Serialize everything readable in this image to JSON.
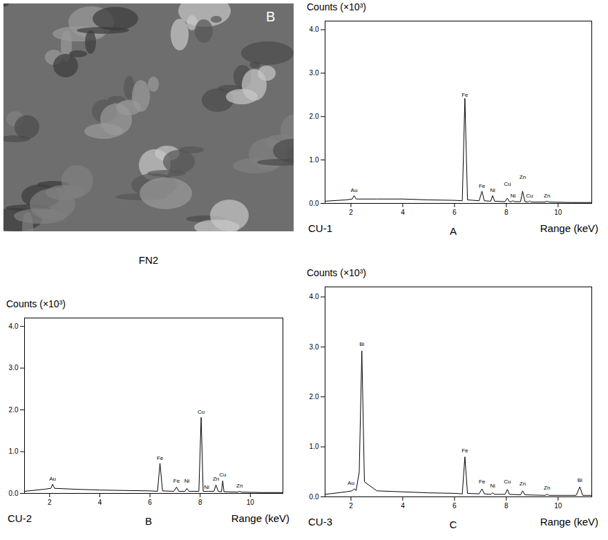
{
  "image": {
    "caption": "FN2",
    "label": "B"
  },
  "chart_data": [
    {
      "type": "line",
      "panel": "A",
      "sample": "CU-1",
      "ylabel": "Counts (×10³)",
      "xlabel": "Range (keV)",
      "color": "#000000",
      "grid": false,
      "xlim": [
        1,
        11.3
      ],
      "xticks": [
        2,
        4,
        6,
        8,
        10
      ],
      "ylim": [
        0,
        4.2
      ],
      "yticks": [
        0,
        1,
        2,
        3,
        4
      ],
      "x": [
        1.0,
        1.8,
        2.05,
        2.12,
        2.2,
        3.0,
        4.0,
        5.0,
        6.0,
        6.3,
        6.4,
        6.5,
        6.95,
        7.06,
        7.15,
        7.4,
        7.47,
        7.55,
        7.95,
        8.04,
        8.12,
        8.2,
        8.26,
        8.32,
        8.55,
        8.63,
        8.72,
        8.85,
        8.9,
        8.95,
        9.5,
        9.57,
        9.65,
        10.5,
        11.3
      ],
      "values": [
        0.05,
        0.08,
        0.1,
        0.18,
        0.1,
        0.1,
        0.1,
        0.08,
        0.07,
        0.06,
        2.42,
        0.08,
        0.06,
        0.28,
        0.06,
        0.05,
        0.18,
        0.05,
        0.04,
        0.12,
        0.04,
        0.04,
        0.06,
        0.04,
        0.04,
        0.28,
        0.04,
        0.03,
        0.06,
        0.03,
        0.03,
        0.05,
        0.03,
        0.02,
        0.02
      ],
      "annotations": [
        {
          "text": "Au",
          "x": 2.12,
          "y": 0.3
        },
        {
          "text": "Fe",
          "x": 6.4,
          "y": 2.5
        },
        {
          "text": "Fe",
          "x": 7.06,
          "y": 0.4
        },
        {
          "text": "Ni",
          "x": 7.47,
          "y": 0.3
        },
        {
          "text": "Cu",
          "x": 8.04,
          "y": 0.45
        },
        {
          "text": "Ni",
          "x": 8.26,
          "y": 0.18
        },
        {
          "text": "Zn",
          "x": 8.63,
          "y": 0.6
        },
        {
          "text": "Cu",
          "x": 8.9,
          "y": 0.18
        },
        {
          "text": "Zn",
          "x": 9.57,
          "y": 0.18
        }
      ]
    },
    {
      "type": "line",
      "panel": "B",
      "sample": "CU-2",
      "ylabel": "Counts (×10³)",
      "xlabel": "Range (keV)",
      "color": "#000000",
      "grid": false,
      "xlim": [
        1,
        11.3
      ],
      "xticks": [
        2,
        4,
        6,
        8,
        10
      ],
      "ylim": [
        0,
        4.2
      ],
      "yticks": [
        0,
        1,
        2,
        3,
        4
      ],
      "x": [
        1.0,
        1.8,
        2.05,
        2.12,
        2.2,
        3.0,
        4.0,
        5.0,
        6.0,
        6.3,
        6.4,
        6.5,
        6.95,
        7.06,
        7.15,
        7.4,
        7.47,
        7.55,
        7.95,
        8.04,
        8.12,
        8.2,
        8.26,
        8.32,
        8.55,
        8.63,
        8.72,
        8.85,
        8.9,
        8.95,
        9.5,
        9.57,
        9.65,
        10.5,
        11.3
      ],
      "values": [
        0.05,
        0.1,
        0.12,
        0.22,
        0.12,
        0.1,
        0.08,
        0.07,
        0.06,
        0.05,
        0.72,
        0.06,
        0.05,
        0.15,
        0.05,
        0.05,
        0.12,
        0.05,
        0.05,
        1.82,
        0.05,
        0.05,
        0.05,
        0.05,
        0.05,
        0.2,
        0.05,
        0.04,
        0.3,
        0.04,
        0.03,
        0.05,
        0.03,
        0.02,
        0.02
      ],
      "annotations": [
        {
          "text": "Au",
          "x": 2.12,
          "y": 0.35
        },
        {
          "text": "Fe",
          "x": 6.4,
          "y": 0.85
        },
        {
          "text": "Fe",
          "x": 7.06,
          "y": 0.3
        },
        {
          "text": "Ni",
          "x": 7.47,
          "y": 0.3
        },
        {
          "text": "Cu",
          "x": 8.04,
          "y": 1.95
        },
        {
          "text": "Ni",
          "x": 8.26,
          "y": 0.15
        },
        {
          "text": "Zn",
          "x": 8.63,
          "y": 0.35
        },
        {
          "text": "Cu",
          "x": 8.9,
          "y": 0.45
        },
        {
          "text": "Zn",
          "x": 9.57,
          "y": 0.18
        }
      ]
    },
    {
      "type": "line",
      "panel": "C",
      "sample": "CU-3",
      "ylabel": "Counts (×10³)",
      "xlabel": "Range (keV)",
      "color": "#000000",
      "grid": false,
      "xlim": [
        1,
        11.3
      ],
      "xticks": [
        2,
        4,
        6,
        8,
        10
      ],
      "ylim": [
        0,
        4.2
      ],
      "yticks": [
        0,
        1,
        2,
        3,
        4
      ],
      "x": [
        1.0,
        1.8,
        2.05,
        2.12,
        2.2,
        2.32,
        2.42,
        2.52,
        3.0,
        4.0,
        5.0,
        6.0,
        6.3,
        6.4,
        6.5,
        6.95,
        7.06,
        7.15,
        7.4,
        7.47,
        7.55,
        7.95,
        8.04,
        8.12,
        8.55,
        8.63,
        8.72,
        9.5,
        9.57,
        9.65,
        10.7,
        10.84,
        10.95,
        11.3
      ],
      "values": [
        0.05,
        0.1,
        0.12,
        0.16,
        0.13,
        0.5,
        2.92,
        0.3,
        0.12,
        0.1,
        0.08,
        0.07,
        0.06,
        0.8,
        0.07,
        0.06,
        0.16,
        0.06,
        0.05,
        0.08,
        0.05,
        0.05,
        0.15,
        0.05,
        0.04,
        0.12,
        0.04,
        0.03,
        0.05,
        0.03,
        0.03,
        0.2,
        0.03,
        0.03
      ],
      "annotations": [
        {
          "text": "Au",
          "x": 2.0,
          "y": 0.28
        },
        {
          "text": "Bi",
          "x": 2.42,
          "y": 3.05
        },
        {
          "text": "Fe",
          "x": 6.4,
          "y": 0.93
        },
        {
          "text": "Fe",
          "x": 7.06,
          "y": 0.3
        },
        {
          "text": "Ni",
          "x": 7.47,
          "y": 0.22
        },
        {
          "text": "Cu",
          "x": 8.04,
          "y": 0.3
        },
        {
          "text": "Zn",
          "x": 8.63,
          "y": 0.27
        },
        {
          "text": "Zn",
          "x": 9.57,
          "y": 0.18
        },
        {
          "text": "Bi",
          "x": 10.84,
          "y": 0.33
        }
      ]
    }
  ]
}
